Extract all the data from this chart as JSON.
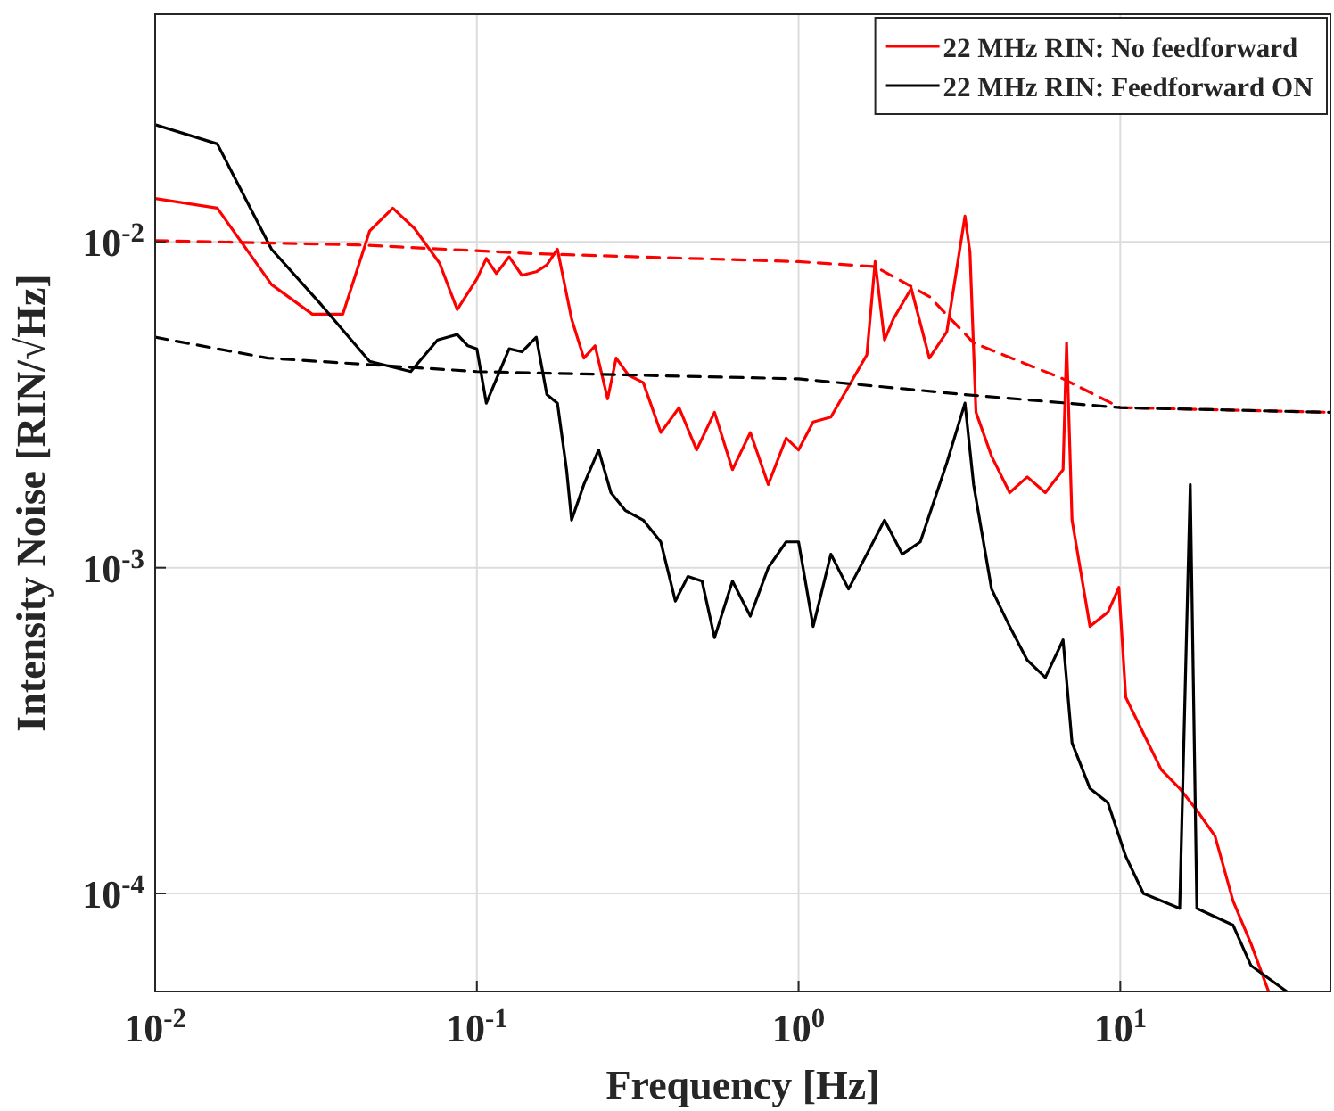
{
  "chart_data": {
    "type": "line",
    "xlabel": "Frequency [Hz]",
    "ylabel": "Intensity Noise [RIN/√Hz]",
    "log": "xy",
    "xlim": [
      0.01,
      45
    ],
    "ylim": [
      5e-05,
      0.05
    ],
    "xticks": [
      {
        "value": 0.01,
        "label": "10$^{-2}$"
      },
      {
        "value": 0.1,
        "label": "10$^{-1}$"
      },
      {
        "value": 1,
        "label": "10$^{0}$"
      },
      {
        "value": 10,
        "label": "10$^{1}$"
      }
    ],
    "yticks": [
      {
        "value": 0.0001,
        "label": "10$^{-4}$"
      },
      {
        "value": 0.001,
        "label": "10$^{-3}$"
      },
      {
        "value": 0.01,
        "label": "10$^{-2}$"
      }
    ],
    "grid": true,
    "legend": "top right",
    "series": [
      {
        "name": "22 MHz RIN: No feedforward",
        "color": "#ff0000",
        "line_style": "solid",
        "x": [
          0.01,
          0.0156,
          0.023,
          0.0308,
          0.0383,
          0.0464,
          0.0548,
          0.064,
          0.0766,
          0.0869,
          0.1,
          0.107,
          0.115,
          0.126,
          0.138,
          0.153,
          0.165,
          0.178,
          0.197,
          0.215,
          0.233,
          0.255,
          0.271,
          0.296,
          0.329,
          0.373,
          0.425,
          0.482,
          0.548,
          0.623,
          0.708,
          0.805,
          0.915,
          1,
          1.11,
          1.26,
          1.43,
          1.63,
          1.73,
          1.85,
          1.97,
          2.24,
          2.55,
          2.89,
          3.29,
          3.41,
          3.56,
          3.98,
          4.53,
          5.14,
          5.85,
          6.64,
          6.81,
          7.08,
          8.05,
          9.15,
          9.9,
          10.4,
          11.8,
          13.4,
          15.3,
          17.3,
          19.7,
          22.4,
          25.5,
          28.9
        ],
        "values": [
          0.0136,
          0.0127,
          0.0074,
          0.006,
          0.006,
          0.0108,
          0.0127,
          0.011,
          0.0086,
          0.0062,
          0.0077,
          0.0089,
          0.008,
          0.009,
          0.0079,
          0.0081,
          0.0085,
          0.0095,
          0.0058,
          0.0044,
          0.0048,
          0.0033,
          0.0044,
          0.0039,
          0.0037,
          0.0026,
          0.0031,
          0.0023,
          0.003,
          0.002,
          0.0026,
          0.0018,
          0.0025,
          0.0023,
          0.0028,
          0.0029,
          0.0036,
          0.0045,
          0.0087,
          0.005,
          0.0058,
          0.0072,
          0.0044,
          0.0053,
          0.012,
          0.0093,
          0.003,
          0.0022,
          0.0017,
          0.0019,
          0.0017,
          0.002,
          0.0049,
          0.0014,
          0.00066,
          0.00073,
          0.00087,
          0.0004,
          0.00031,
          0.00024,
          0.00021,
          0.00018,
          0.00015,
          9.5e-05,
          7e-05,
          5e-05
        ]
      },
      {
        "name": "22 MHz RIN: Feedforward ON",
        "color": "#000000",
        "line_style": "solid",
        "x": [
          0.01,
          0.0156,
          0.023,
          0.0329,
          0.0464,
          0.0623,
          0.0755,
          0.0869,
          0.0938,
          0.1,
          0.107,
          0.126,
          0.138,
          0.153,
          0.165,
          0.178,
          0.19,
          0.197,
          0.215,
          0.239,
          0.261,
          0.289,
          0.329,
          0.373,
          0.414,
          0.453,
          0.501,
          0.548,
          0.623,
          0.708,
          0.805,
          0.915,
          1,
          1.11,
          1.26,
          1.43,
          1.63,
          1.85,
          2.1,
          2.39,
          2.89,
          3.29,
          3.5,
          3.98,
          4.53,
          5.14,
          5.85,
          6.64,
          7.08,
          8.05,
          9.15,
          10.4,
          11.8,
          15.3,
          16.5,
          17.3,
          22.4,
          25.5,
          32.9
        ],
        "values": [
          0.0229,
          0.02,
          0.0095,
          0.0064,
          0.0043,
          0.004,
          0.005,
          0.0052,
          0.0048,
          0.0047,
          0.0032,
          0.0047,
          0.0046,
          0.0051,
          0.0034,
          0.0032,
          0.002,
          0.0014,
          0.0018,
          0.0023,
          0.0017,
          0.0015,
          0.0014,
          0.0012,
          0.00079,
          0.00094,
          0.00091,
          0.00061,
          0.00091,
          0.00071,
          0.001,
          0.0012,
          0.0012,
          0.00066,
          0.0011,
          0.00086,
          0.0011,
          0.0014,
          0.0011,
          0.0012,
          0.0021,
          0.0032,
          0.0018,
          0.00086,
          0.00066,
          0.00052,
          0.00046,
          0.0006,
          0.00029,
          0.00021,
          0.00019,
          0.00013,
          0.0001,
          9e-05,
          0.0018,
          9e-05,
          8e-05,
          6e-05,
          5e-05
        ]
      },
      {
        "color": "#ff0000",
        "line_style": "dashed",
        "x": [
          0.01,
          0.0425,
          0.153,
          1,
          1.73,
          2.55,
          3.5,
          6.64,
          10,
          45
        ],
        "values": [
          0.0101,
          0.0098,
          0.0092,
          0.0087,
          0.0084,
          0.0068,
          0.0049,
          0.0038,
          0.0031,
          0.003
        ]
      },
      {
        "color": "#000000",
        "line_style": "dashed",
        "x": [
          0.01,
          0.0224,
          0.1,
          1,
          3.29,
          10,
          45
        ],
        "values": [
          0.0051,
          0.0044,
          0.004,
          0.0038,
          0.0034,
          0.0031,
          0.003
        ]
      }
    ]
  }
}
